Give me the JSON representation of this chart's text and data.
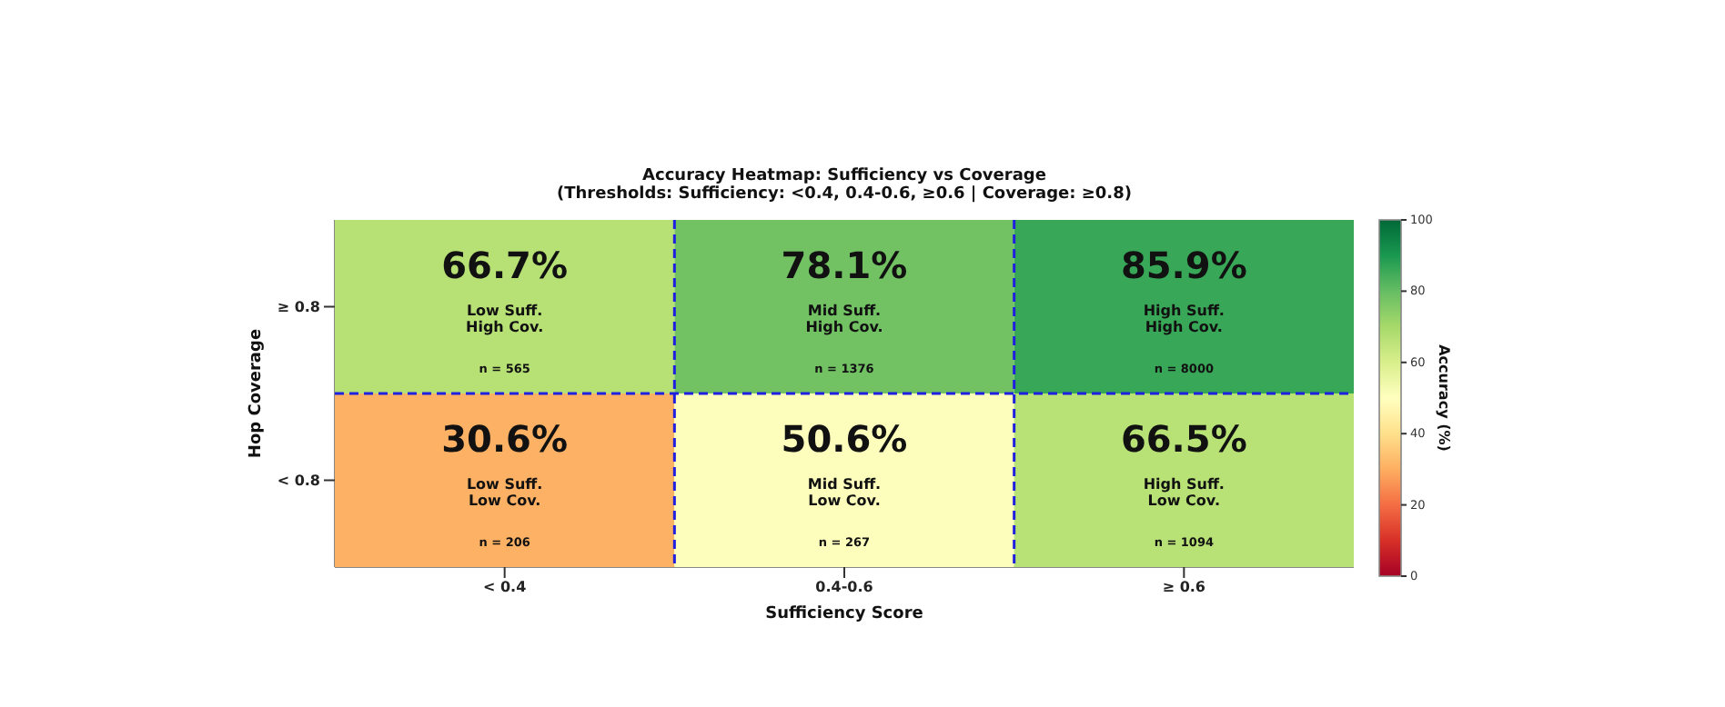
{
  "chart_data": {
    "type": "heatmap",
    "title": "Accuracy Heatmap: Sufficiency vs Coverage",
    "subtitle": "(Thresholds: Sufficiency: <0.4, 0.4-0.6, ≥0.6 | Coverage: ≥0.8)",
    "xlabel": "Sufficiency Score",
    "ylabel": "Hop Coverage",
    "clabel": "Accuracy (%)",
    "categories": [
      "< 0.4",
      "0.4-0.6",
      "≥ 0.6"
    ],
    "y_categories": [
      "≥ 0.8",
      "< 0.8"
    ],
    "cells": [
      [
        66.7,
        78.1,
        85.9
      ],
      [
        30.6,
        50.6,
        66.5
      ]
    ],
    "cell_labels": [
      [
        "66.7%\nLow Suff.\nHigh Cov.\nn = 565",
        "78.1%\nMid Suff.\nHigh Cov.\nn = 1376",
        "85.9%\nHigh Suff.\nHigh Cov.\nn = 8000"
      ],
      [
        "30.6%\nLow Suff.\nLow Cov.\nn = 206",
        "50.6%\nMid Suff.\nLow Cov.\nn = 267",
        "66.5%\nHigh Suff.\nLow Cov.\nn = 1094"
      ]
    ],
    "clim": [
      0,
      100
    ],
    "cticks": [
      0,
      20,
      40,
      60,
      80,
      100
    ],
    "grid": true
  }
}
